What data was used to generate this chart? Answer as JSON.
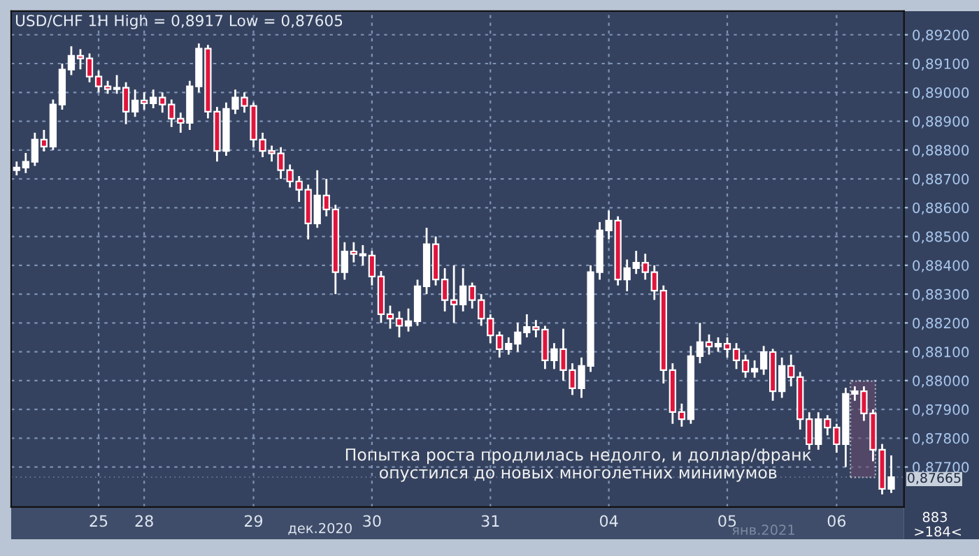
{
  "chart_data": {
    "type": "candlestick",
    "title": "USD/CHF 1H High = 0,8917 Low = 0,87605",
    "categories": [
      null,
      null,
      null,
      null,
      null,
      null,
      null,
      null,
      null,
      "25",
      null,
      null,
      null,
      null,
      "28",
      null,
      null,
      null,
      null,
      null,
      null,
      null,
      null,
      null,
      null,
      null,
      "29",
      null,
      null,
      null,
      null,
      null,
      null,
      null,
      null,
      null,
      null,
      null,
      null,
      "30",
      null,
      null,
      null,
      null,
      null,
      null,
      null,
      null,
      null,
      null,
      null,
      null,
      "31",
      null,
      null,
      null,
      null,
      null,
      null,
      null,
      null,
      null,
      null,
      null,
      null,
      "04",
      null,
      null,
      null,
      null,
      null,
      null,
      null,
      null,
      null,
      null,
      null,
      null,
      "05",
      null,
      null,
      null,
      null,
      null,
      null,
      null,
      null,
      null,
      null,
      null,
      "06",
      null,
      null,
      null,
      null,
      null,
      null
    ],
    "ohlc": [
      [
        0.8873,
        0.8876,
        0.88712,
        0.88739
      ],
      [
        0.88739,
        0.8879,
        0.8872,
        0.88759
      ],
      [
        0.88759,
        0.8886,
        0.88745,
        0.88836
      ],
      [
        0.88836,
        0.8887,
        0.88795,
        0.88812
      ],
      [
        0.88812,
        0.88975,
        0.888,
        0.88958
      ],
      [
        0.88958,
        0.891,
        0.8894,
        0.89079
      ],
      [
        0.89079,
        0.8916,
        0.8906,
        0.89127
      ],
      [
        0.89127,
        0.8915,
        0.8908,
        0.89118
      ],
      [
        0.89118,
        0.89135,
        0.89035,
        0.89055
      ],
      [
        0.89055,
        0.89075,
        0.89,
        0.89021
      ],
      [
        0.89021,
        0.8904,
        0.88995,
        0.89011
      ],
      [
        0.89011,
        0.8906,
        0.88995,
        0.89016
      ],
      [
        0.89016,
        0.89035,
        0.8889,
        0.88933
      ],
      [
        0.88933,
        0.8901,
        0.88915,
        0.88972
      ],
      [
        0.88972,
        0.89,
        0.8894,
        0.88962
      ],
      [
        0.88962,
        0.8901,
        0.88945,
        0.88982
      ],
      [
        0.88982,
        0.89,
        0.8893,
        0.88958
      ],
      [
        0.88958,
        0.88975,
        0.8888,
        0.88909
      ],
      [
        0.88909,
        0.8893,
        0.8886,
        0.88894
      ],
      [
        0.88894,
        0.8904,
        0.8887,
        0.89021
      ],
      [
        0.89021,
        0.8917,
        0.89,
        0.89152
      ],
      [
        0.89152,
        0.89165,
        0.8891,
        0.88933
      ],
      [
        0.88933,
        0.8895,
        0.8876,
        0.88797
      ],
      [
        0.88797,
        0.88965,
        0.8878,
        0.88943
      ],
      [
        0.88943,
        0.8901,
        0.88925,
        0.88982
      ],
      [
        0.88982,
        0.89,
        0.8893,
        0.88953
      ],
      [
        0.88953,
        0.88965,
        0.8881,
        0.88836
      ],
      [
        0.88836,
        0.8886,
        0.88775,
        0.88797
      ],
      [
        0.88797,
        0.88815,
        0.8876,
        0.88788
      ],
      [
        0.88788,
        0.8881,
        0.887,
        0.8873
      ],
      [
        0.8873,
        0.8875,
        0.8867,
        0.88691
      ],
      [
        0.88691,
        0.8871,
        0.8862,
        0.88662
      ],
      [
        0.88662,
        0.8868,
        0.8849,
        0.88545
      ],
      [
        0.88545,
        0.8873,
        0.8853,
        0.88642
      ],
      [
        0.88642,
        0.887,
        0.8857,
        0.88594
      ],
      [
        0.88594,
        0.8861,
        0.883,
        0.88376
      ],
      [
        0.88376,
        0.8848,
        0.8835,
        0.88448
      ],
      [
        0.88448,
        0.8848,
        0.8841,
        0.88439
      ],
      [
        0.88439,
        0.8847,
        0.884,
        0.88434
      ],
      [
        0.88434,
        0.8845,
        0.8833,
        0.88361
      ],
      [
        0.88361,
        0.8838,
        0.882,
        0.8823
      ],
      [
        0.8823,
        0.8826,
        0.8818,
        0.88215
      ],
      [
        0.88215,
        0.8824,
        0.8815,
        0.8819
      ],
      [
        0.8819,
        0.8825,
        0.8817,
        0.88206
      ],
      [
        0.88206,
        0.8835,
        0.8819,
        0.88327
      ],
      [
        0.88327,
        0.8853,
        0.883,
        0.88473
      ],
      [
        0.88473,
        0.885,
        0.8833,
        0.88351
      ],
      [
        0.88351,
        0.8839,
        0.8824,
        0.88279
      ],
      [
        0.88279,
        0.884,
        0.882,
        0.88264
      ],
      [
        0.88264,
        0.8839,
        0.8824,
        0.88327
      ],
      [
        0.88327,
        0.8834,
        0.8825,
        0.88279
      ],
      [
        0.88279,
        0.883,
        0.8819,
        0.88215
      ],
      [
        0.88215,
        0.8823,
        0.8813,
        0.88157
      ],
      [
        0.88157,
        0.8817,
        0.8808,
        0.88109
      ],
      [
        0.88109,
        0.8815,
        0.8809,
        0.88128
      ],
      [
        0.88128,
        0.882,
        0.881,
        0.88167
      ],
      [
        0.88167,
        0.8823,
        0.8815,
        0.88186
      ],
      [
        0.88186,
        0.8821,
        0.8815,
        0.88177
      ],
      [
        0.88177,
        0.8819,
        0.8804,
        0.8807
      ],
      [
        0.8807,
        0.8813,
        0.8804,
        0.88109
      ],
      [
        0.88109,
        0.8818,
        0.88,
        0.88036
      ],
      [
        0.88036,
        0.8806,
        0.8795,
        0.87973
      ],
      [
        0.87973,
        0.8808,
        0.8794,
        0.88051
      ],
      [
        0.88051,
        0.884,
        0.8803,
        0.88376
      ],
      [
        0.88376,
        0.8855,
        0.8835,
        0.88521
      ],
      [
        0.88521,
        0.8859,
        0.8849,
        0.88555
      ],
      [
        0.88555,
        0.8857,
        0.8833,
        0.88351
      ],
      [
        0.88351,
        0.8842,
        0.8831,
        0.8839
      ],
      [
        0.8839,
        0.8845,
        0.8837,
        0.88409
      ],
      [
        0.88409,
        0.8844,
        0.8835,
        0.88376
      ],
      [
        0.88376,
        0.884,
        0.8828,
        0.88312
      ],
      [
        0.88312,
        0.8833,
        0.8799,
        0.88036
      ],
      [
        0.88036,
        0.8806,
        0.8785,
        0.87891
      ],
      [
        0.87891,
        0.8792,
        0.8784,
        0.87866
      ],
      [
        0.87866,
        0.8812,
        0.8785,
        0.88085
      ],
      [
        0.88085,
        0.882,
        0.8806,
        0.88133
      ],
      [
        0.88133,
        0.8816,
        0.8809,
        0.88118
      ],
      [
        0.88118,
        0.8815,
        0.881,
        0.88128
      ],
      [
        0.88128,
        0.8815,
        0.8808,
        0.88109
      ],
      [
        0.88109,
        0.8813,
        0.8804,
        0.8807
      ],
      [
        0.8807,
        0.8809,
        0.8801,
        0.88031
      ],
      [
        0.88031,
        0.8807,
        0.8801,
        0.88041
      ],
      [
        0.88041,
        0.8812,
        0.8802,
        0.88099
      ],
      [
        0.88099,
        0.8811,
        0.8793,
        0.87963
      ],
      [
        0.87963,
        0.8808,
        0.8794,
        0.88051
      ],
      [
        0.88051,
        0.8809,
        0.8798,
        0.88012
      ],
      [
        0.88012,
        0.8803,
        0.8783,
        0.87866
      ],
      [
        0.87866,
        0.8789,
        0.8776,
        0.87779
      ],
      [
        0.87779,
        0.8789,
        0.8776,
        0.87866
      ],
      [
        0.87866,
        0.8788,
        0.8781,
        0.87837
      ],
      [
        0.87837,
        0.8785,
        0.8775,
        0.87779
      ],
      [
        0.87779,
        0.87975,
        0.877,
        0.87954
      ],
      [
        0.87954,
        0.8798,
        0.8793,
        0.87963
      ],
      [
        0.87963,
        0.8798,
        0.8786,
        0.87886
      ],
      [
        0.87886,
        0.879,
        0.8772,
        0.8776
      ],
      [
        0.8776,
        0.8778,
        0.87605,
        0.87624
      ],
      [
        0.87624,
        0.8774,
        0.8761,
        0.87665
      ]
    ],
    "ylim": [
      0.87561,
      0.89282
    ],
    "yticks": [
      {
        "value": 0.877,
        "label": "0,87700"
      },
      {
        "value": 0.878,
        "label": "0,87800"
      },
      {
        "value": 0.879,
        "label": "0,87900"
      },
      {
        "value": 0.88,
        "label": "0,88000"
      },
      {
        "value": 0.881,
        "label": "0,88100"
      },
      {
        "value": 0.882,
        "label": "0,88200"
      },
      {
        "value": 0.883,
        "label": "0,88300"
      },
      {
        "value": 0.884,
        "label": "0,88400"
      },
      {
        "value": 0.885,
        "label": "0,88500"
      },
      {
        "value": 0.886,
        "label": "0,88600"
      },
      {
        "value": 0.887,
        "label": "0,88700"
      },
      {
        "value": 0.888,
        "label": "0,88800"
      },
      {
        "value": 0.889,
        "label": "0,88900"
      },
      {
        "value": 0.89,
        "label": "0,89000"
      },
      {
        "value": 0.891,
        "label": "0,89100"
      },
      {
        "value": 0.892,
        "label": "0,89200"
      }
    ],
    "ref_lines": [
      {
        "axis": "y",
        "value": 0.87665,
        "label": "0,87665"
      }
    ],
    "grid": true,
    "annotations": [
      "Попытка роста продлилась недолго, и доллар/франк\nопустился до новых многолетних минимумов",
      "дек.2020",
      "янв.2021",
      "883",
      ">184<"
    ]
  }
}
